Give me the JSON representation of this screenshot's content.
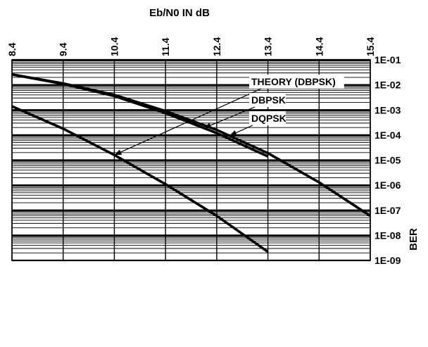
{
  "chart_data": {
    "type": "line",
    "title": "",
    "xlabel": "Eb/N0 IN dB",
    "ylabel": "BER",
    "x_ticks": [
      "8.4",
      "9.4",
      "10.4",
      "11.4",
      "12.4",
      "13.4",
      "14.4",
      "15.4"
    ],
    "xlim": [
      8.4,
      15.4
    ],
    "y_scale": "log",
    "y_ticks": [
      "1E-01",
      "1E-02",
      "1E-03",
      "1E-04",
      "1E-05",
      "1E-06",
      "1E-07",
      "1E-08",
      "1E-09"
    ],
    "ylim": [
      1e-09,
      0.1
    ],
    "grid": true,
    "legend_position": "top-right",
    "series": [
      {
        "name": "THEORY (DBPSK)",
        "x": [
          8.4,
          9.4,
          10.4,
          11.4,
          12.4,
          13.4
        ],
        "y": [
          0.0014,
          0.00018,
          1.6e-05,
          1.1e-06,
          6e-08,
          2.2e-09
        ]
      },
      {
        "name": "DBPSK",
        "x": [
          8.4,
          9.4,
          10.4,
          11.4,
          12.4,
          13.4
        ],
        "y": [
          0.026,
          0.011,
          0.0036,
          0.00075,
          0.00012,
          1.4e-05
        ]
      },
      {
        "name": "DQPSK",
        "x": [
          8.4,
          9.4,
          10.4,
          11.4,
          12.4,
          13.4,
          14.4,
          15.4
        ],
        "y": [
          0.026,
          0.0115,
          0.004,
          0.0009,
          0.00016,
          1.9e-05,
          1.3e-06,
          6e-08
        ]
      }
    ],
    "annotations": [
      {
        "label": "THEORY (DBPSK)",
        "target_series": 0,
        "target_x": 10.4
      },
      {
        "label": "DBPSK",
        "target_series": 1,
        "target_x": 12.15
      },
      {
        "label": "DQPSK",
        "target_series": 2,
        "target_x": 12.65
      }
    ]
  }
}
